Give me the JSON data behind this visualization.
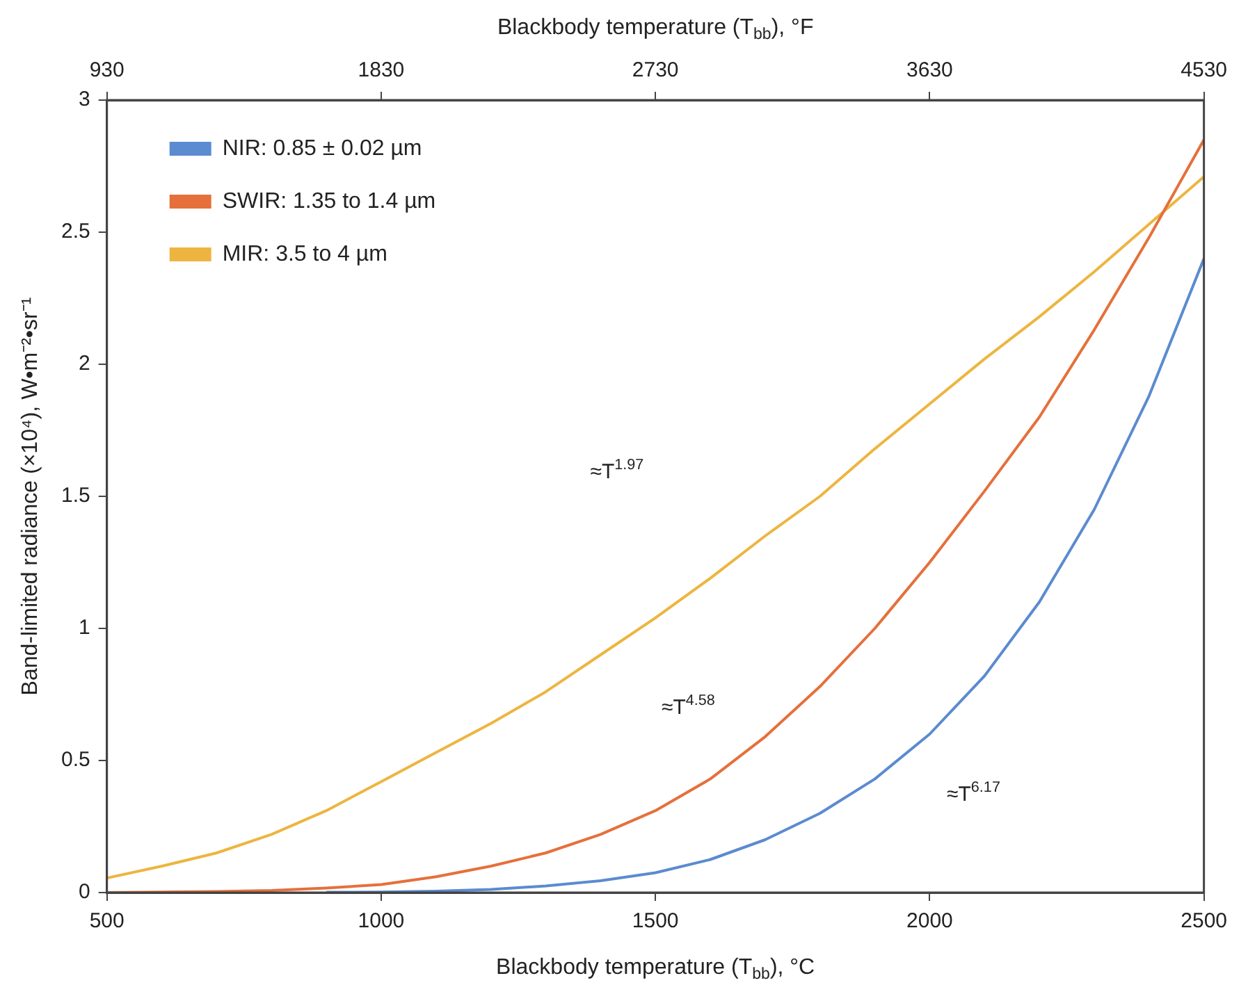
{
  "chart_data": {
    "type": "line",
    "xlabel": "Blackbody temperature (T$_{bb}$), °C",
    "x2label": "Blackbody temperature (T$_{bb}$), °F",
    "ylabel": "Band-limited radiance (×10⁴), W•m⁻²•sr⁻¹",
    "x": [
      500,
      600,
      700,
      800,
      900,
      1000,
      1100,
      1200,
      1300,
      1400,
      1500,
      1600,
      1700,
      1800,
      1900,
      2000,
      2100,
      2200,
      2300,
      2400,
      2500
    ],
    "series": [
      {
        "name": "NIR: 0.85 ± 0.02 µm",
        "color": "#5b8bd0",
        "values": [
          null,
          null,
          null,
          null,
          0.001,
          0.002,
          0.005,
          0.012,
          0.025,
          0.045,
          0.075,
          0.125,
          0.2,
          0.3,
          0.43,
          0.6,
          0.82,
          1.1,
          1.45,
          1.88,
          2.4
        ]
      },
      {
        "name": "SWIR: 1.35 to 1.4 µm",
        "color": "#e5703b",
        "values": [
          0,
          0.002,
          0.004,
          0.008,
          0.017,
          0.03,
          0.06,
          0.1,
          0.15,
          0.22,
          0.31,
          0.43,
          0.59,
          0.78,
          1.0,
          1.25,
          1.52,
          1.8,
          2.13,
          2.48,
          2.85
        ]
      },
      {
        "name": "MIR: 3.5 to 4 µm",
        "color": "#edb540",
        "values": [
          0.055,
          0.1,
          0.15,
          0.22,
          0.31,
          0.42,
          0.53,
          0.64,
          0.76,
          0.9,
          1.04,
          1.19,
          1.35,
          1.5,
          1.68,
          1.85,
          2.02,
          2.18,
          2.35,
          2.53,
          2.71
        ]
      }
    ],
    "xlim": [
      500,
      2500
    ],
    "xticks": [
      500,
      1000,
      1500,
      2000,
      2500
    ],
    "x2lim": [
      930,
      4530
    ],
    "x2ticks": [
      930,
      1830,
      2730,
      3630,
      4530
    ],
    "ylim": [
      0,
      3
    ],
    "yticks": [
      0,
      0.5,
      1,
      1.5,
      2,
      2.5,
      3
    ],
    "annotations": [
      "≈T$^{1.97}$",
      "≈T$^{4.58}$",
      "≈T$^{6.17}$"
    ],
    "legend": "top left",
    "grid": false,
    "marker": "none",
    "line_style": "solid"
  }
}
